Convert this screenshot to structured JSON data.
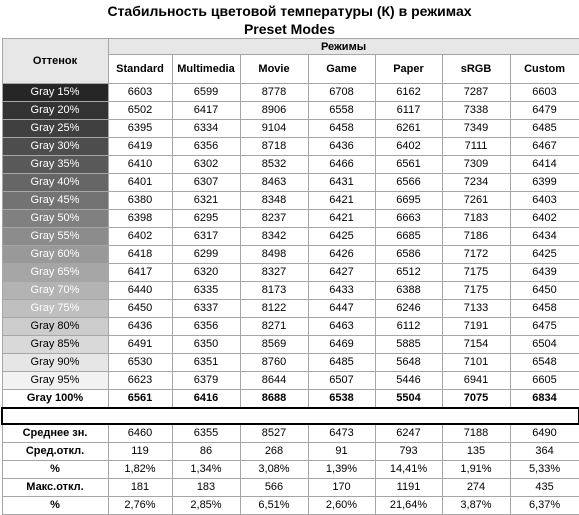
{
  "title_line1": "Стабильность цветовой температуры (К) в режимах",
  "title_line2": "Preset Modes",
  "header": {
    "shade_label": "Оттенок",
    "modes_label": "Режимы",
    "columns": [
      "Standard",
      "Multimedia",
      "Movie",
      "Game",
      "Paper",
      "sRGB",
      "Custom"
    ]
  },
  "colors": {
    "grid_line": "#a6a6a6",
    "header_bg": "#e7e7e7"
  },
  "gray_rows": [
    {
      "label": "Gray 15%",
      "bg": "#262626",
      "fg": "#ffffff",
      "values": [
        "6603",
        "6599",
        "8778",
        "6708",
        "6162",
        "7287",
        "6603"
      ]
    },
    {
      "label": "Gray 20%",
      "bg": "#333333",
      "fg": "#ffffff",
      "values": [
        "6502",
        "6417",
        "8906",
        "6558",
        "6117",
        "7338",
        "6479"
      ]
    },
    {
      "label": "Gray 25%",
      "bg": "#404040",
      "fg": "#ffffff",
      "values": [
        "6395",
        "6334",
        "9104",
        "6458",
        "6261",
        "7349",
        "6485"
      ]
    },
    {
      "label": "Gray 30%",
      "bg": "#4d4d4d",
      "fg": "#ffffff",
      "values": [
        "6419",
        "6356",
        "8718",
        "6436",
        "6402",
        "7111",
        "6467"
      ]
    },
    {
      "label": "Gray 35%",
      "bg": "#595959",
      "fg": "#ffffff",
      "values": [
        "6410",
        "6302",
        "8532",
        "6466",
        "6561",
        "7309",
        "6414"
      ]
    },
    {
      "label": "Gray 40%",
      "bg": "#666666",
      "fg": "#ffffff",
      "values": [
        "6401",
        "6307",
        "8463",
        "6431",
        "6566",
        "7234",
        "6399"
      ]
    },
    {
      "label": "Gray 45%",
      "bg": "#737373",
      "fg": "#ffffff",
      "values": [
        "6380",
        "6321",
        "8348",
        "6421",
        "6695",
        "7261",
        "6403"
      ]
    },
    {
      "label": "Gray 50%",
      "bg": "#808080",
      "fg": "#ffffff",
      "values": [
        "6398",
        "6295",
        "8237",
        "6421",
        "6663",
        "7183",
        "6402"
      ]
    },
    {
      "label": "Gray 55%",
      "bg": "#8c8c8c",
      "fg": "#ffffff",
      "values": [
        "6402",
        "6317",
        "8342",
        "6425",
        "6685",
        "7186",
        "6434"
      ]
    },
    {
      "label": "Gray 60%",
      "bg": "#999999",
      "fg": "#ffffff",
      "values": [
        "6418",
        "6299",
        "8498",
        "6426",
        "6586",
        "7172",
        "6425"
      ]
    },
    {
      "label": "Gray 65%",
      "bg": "#a6a6a6",
      "fg": "#ffffff",
      "values": [
        "6417",
        "6320",
        "8327",
        "6427",
        "6512",
        "7175",
        "6439"
      ]
    },
    {
      "label": "Gray 70%",
      "bg": "#b3b3b3",
      "fg": "#ffffff",
      "values": [
        "6440",
        "6335",
        "8173",
        "6433",
        "6388",
        "7175",
        "6450"
      ]
    },
    {
      "label": "Gray 75%",
      "bg": "#bfbfbf",
      "fg": "#ffffff",
      "values": [
        "6450",
        "6337",
        "8122",
        "6447",
        "6246",
        "7133",
        "6458"
      ]
    },
    {
      "label": "Gray 80%",
      "bg": "#cccccc",
      "fg": "#000000",
      "values": [
        "6436",
        "6356",
        "8271",
        "6463",
        "6112",
        "7191",
        "6475"
      ]
    },
    {
      "label": "Gray 85%",
      "bg": "#d9d9d9",
      "fg": "#000000",
      "values": [
        "6491",
        "6350",
        "8569",
        "6469",
        "5885",
        "7154",
        "6504"
      ]
    },
    {
      "label": "Gray 90%",
      "bg": "#e6e6e6",
      "fg": "#000000",
      "values": [
        "6530",
        "6351",
        "8760",
        "6485",
        "5648",
        "7101",
        "6548"
      ]
    },
    {
      "label": "Gray 95%",
      "bg": "#f2f2f2",
      "fg": "#000000",
      "values": [
        "6623",
        "6379",
        "8644",
        "6507",
        "5446",
        "6941",
        "6605"
      ]
    },
    {
      "label": "Gray 100%",
      "bg": "#ffffff",
      "fg": "#000000",
      "values": [
        "6561",
        "6416",
        "8688",
        "6538",
        "5504",
        "7075",
        "6834"
      ],
      "bold": true
    }
  ],
  "stat_rows": [
    {
      "label": "Среднее зн.",
      "values": [
        "6460",
        "6355",
        "8527",
        "6473",
        "6247",
        "7188",
        "6490"
      ]
    },
    {
      "label": "Сред.откл.",
      "values": [
        "119",
        "86",
        "268",
        "91",
        "793",
        "135",
        "364"
      ]
    },
    {
      "label": "%",
      "values": [
        "1,82%",
        "1,34%",
        "3,08%",
        "1,39%",
        "14,41%",
        "1,91%",
        "5,33%"
      ]
    },
    {
      "label": "Макс.откл.",
      "values": [
        "181",
        "183",
        "566",
        "170",
        "1191",
        "274",
        "435"
      ]
    },
    {
      "label": "%",
      "values": [
        "2,76%",
        "2,85%",
        "6,51%",
        "2,60%",
        "21,64%",
        "3,87%",
        "6,37%"
      ]
    }
  ],
  "chart_data": {
    "type": "table",
    "title": "Стабильность цветовой температуры (К) в режимах Preset Modes",
    "row_header": "Оттенок",
    "column_group": "Режимы",
    "columns": [
      "Standard",
      "Multimedia",
      "Movie",
      "Game",
      "Paper",
      "sRGB",
      "Custom"
    ],
    "rows": [
      "Gray 15%",
      "Gray 20%",
      "Gray 25%",
      "Gray 30%",
      "Gray 35%",
      "Gray 40%",
      "Gray 45%",
      "Gray 50%",
      "Gray 55%",
      "Gray 60%",
      "Gray 65%",
      "Gray 70%",
      "Gray 75%",
      "Gray 80%",
      "Gray 85%",
      "Gray 90%",
      "Gray 95%",
      "Gray 100%"
    ],
    "values": [
      [
        6603,
        6599,
        8778,
        6708,
        6162,
        7287,
        6603
      ],
      [
        6502,
        6417,
        8906,
        6558,
        6117,
        7338,
        6479
      ],
      [
        6395,
        6334,
        9104,
        6458,
        6261,
        7349,
        6485
      ],
      [
        6419,
        6356,
        8718,
        6436,
        6402,
        7111,
        6467
      ],
      [
        6410,
        6302,
        8532,
        6466,
        6561,
        7309,
        6414
      ],
      [
        6401,
        6307,
        8463,
        6431,
        6566,
        7234,
        6399
      ],
      [
        6380,
        6321,
        8348,
        6421,
        6695,
        7261,
        6403
      ],
      [
        6398,
        6295,
        8237,
        6421,
        6663,
        7183,
        6402
      ],
      [
        6402,
        6317,
        8342,
        6425,
        6685,
        7186,
        6434
      ],
      [
        6418,
        6299,
        8498,
        6426,
        6586,
        7172,
        6425
      ],
      [
        6417,
        6320,
        8327,
        6427,
        6512,
        7175,
        6439
      ],
      [
        6440,
        6335,
        8173,
        6433,
        6388,
        7175,
        6450
      ],
      [
        6450,
        6337,
        8122,
        6447,
        6246,
        7133,
        6458
      ],
      [
        6436,
        6356,
        8271,
        6463,
        6112,
        7191,
        6475
      ],
      [
        6491,
        6350,
        8569,
        6469,
        5885,
        7154,
        6504
      ],
      [
        6530,
        6351,
        8760,
        6485,
        5648,
        7101,
        6548
      ],
      [
        6623,
        6379,
        8644,
        6507,
        5446,
        6941,
        6605
      ],
      [
        6561,
        6416,
        8688,
        6538,
        5504,
        7075,
        6834
      ]
    ],
    "summary": {
      "Среднее зн.": [
        6460,
        6355,
        8527,
        6473,
        6247,
        7188,
        6490
      ],
      "Сред.откл.": [
        119,
        86,
        268,
        91,
        793,
        135,
        364
      ],
      "Сред.откл. %": [
        "1,82%",
        "1,34%",
        "3,08%",
        "1,39%",
        "14,41%",
        "1,91%",
        "5,33%"
      ],
      "Макс.откл.": [
        181,
        183,
        566,
        170,
        1191,
        274,
        435
      ],
      "Макс.откл. %": [
        "2,76%",
        "2,85%",
        "6,51%",
        "2,60%",
        "21,64%",
        "3,87%",
        "6,37%"
      ]
    }
  }
}
